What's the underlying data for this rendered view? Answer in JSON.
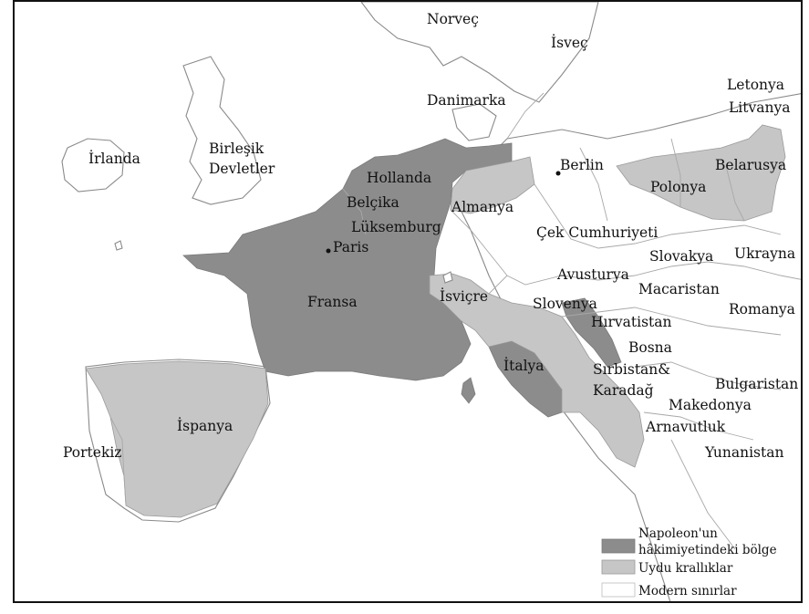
{
  "colors": {
    "napoleon": "#8c8c8c",
    "satellite": "#c6c6c6",
    "modern": "#ffffff",
    "frame": "#111111"
  },
  "countries": [
    {
      "name": "Norveç"
    },
    {
      "name": "İsveç"
    },
    {
      "name": "Letonya"
    },
    {
      "name": "Litvanya"
    },
    {
      "name": "Danimarka"
    },
    {
      "name": "İrlanda"
    },
    {
      "name": "Birleşik"
    },
    {
      "name": "Devletler"
    },
    {
      "name": "Hollanda"
    },
    {
      "name": "Berlin"
    },
    {
      "name": "Belarusya"
    },
    {
      "name": "Belçika"
    },
    {
      "name": "Almanya"
    },
    {
      "name": "Polonya"
    },
    {
      "name": "Lüksemburg"
    },
    {
      "name": "Paris"
    },
    {
      "name": "Çek Cumhuriyeti"
    },
    {
      "name": "Slovakya"
    },
    {
      "name": "Ukrayna"
    },
    {
      "name": "Avusturya"
    },
    {
      "name": "Fransa"
    },
    {
      "name": "İsviçre"
    },
    {
      "name": "Macaristan"
    },
    {
      "name": "Slovenya"
    },
    {
      "name": "Romanya"
    },
    {
      "name": "Hırvatistan"
    },
    {
      "name": "Bosna"
    },
    {
      "name": "İtalya"
    },
    {
      "name": "Sırbistan&"
    },
    {
      "name": "Bulgaristan"
    },
    {
      "name": "Karadağ"
    },
    {
      "name": "Makedonya"
    },
    {
      "name": "İspanya"
    },
    {
      "name": "Arnavutluk"
    },
    {
      "name": "Portekiz"
    },
    {
      "name": "Yunanistan"
    }
  ],
  "legend": [
    {
      "label_lines": [
        "Napoleon'un",
        "hâkimiyetindeki bölge"
      ]
    },
    {
      "label_lines": [
        "Uydu krallıklar"
      ]
    },
    {
      "label_lines": [
        "Modern sınırlar"
      ]
    }
  ]
}
